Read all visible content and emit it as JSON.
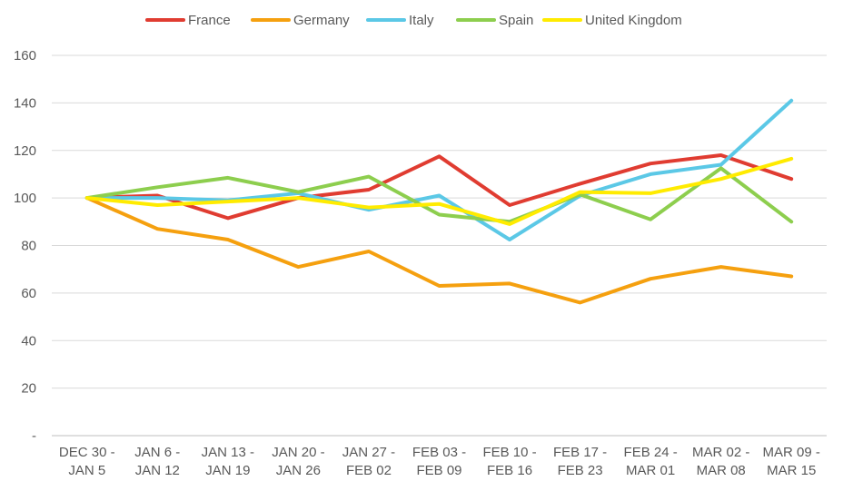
{
  "chart_data": {
    "type": "line",
    "title": "",
    "xlabel": "",
    "ylabel": "",
    "ylim": [
      0,
      160
    ],
    "y_ticks": [
      "-",
      "20",
      "40",
      "60",
      "80",
      "100",
      "120",
      "140",
      "160"
    ],
    "grid": "horizontal",
    "legend_position": "top",
    "categories": [
      [
        "DEC 30 -",
        "JAN 5"
      ],
      [
        "JAN 6 -",
        "JAN 12"
      ],
      [
        "JAN 13 -",
        "JAN 19"
      ],
      [
        "JAN 20 -",
        "JAN 26"
      ],
      [
        "JAN 27 -",
        "FEB 02"
      ],
      [
        "FEB 03 -",
        "FEB 09"
      ],
      [
        "FEB 10 -",
        "FEB 16"
      ],
      [
        "FEB 17 -",
        "FEB 23"
      ],
      [
        "FEB 24 -",
        "MAR 01"
      ],
      [
        "MAR 02 -",
        "MAR 08"
      ],
      [
        "MAR 09 -",
        "MAR 15"
      ]
    ],
    "series": [
      {
        "name": "France",
        "color": "#E03C31",
        "values": [
          100,
          101,
          91.5,
          100,
          103.5,
          117.5,
          97,
          106,
          114.5,
          118,
          108
        ]
      },
      {
        "name": "Germany",
        "color": "#F5A00F",
        "values": [
          100,
          87,
          82.5,
          71,
          77.5,
          63,
          64,
          56,
          66,
          71,
          67
        ]
      },
      {
        "name": "Italy",
        "color": "#5BC8E6",
        "values": [
          100,
          100,
          99,
          102,
          95,
          101,
          82.5,
          101,
          110,
          114,
          141
        ]
      },
      {
        "name": "Spain",
        "color": "#8DCE4E",
        "values": [
          100,
          104.5,
          108.5,
          102.5,
          109,
          93,
          90,
          101.5,
          91,
          112.5,
          90
        ]
      },
      {
        "name": "United Kingdom",
        "color": "#FFEB00",
        "values": [
          100,
          97,
          98.5,
          100,
          96,
          97.5,
          89,
          102.5,
          102,
          108,
          116.5
        ]
      }
    ]
  }
}
